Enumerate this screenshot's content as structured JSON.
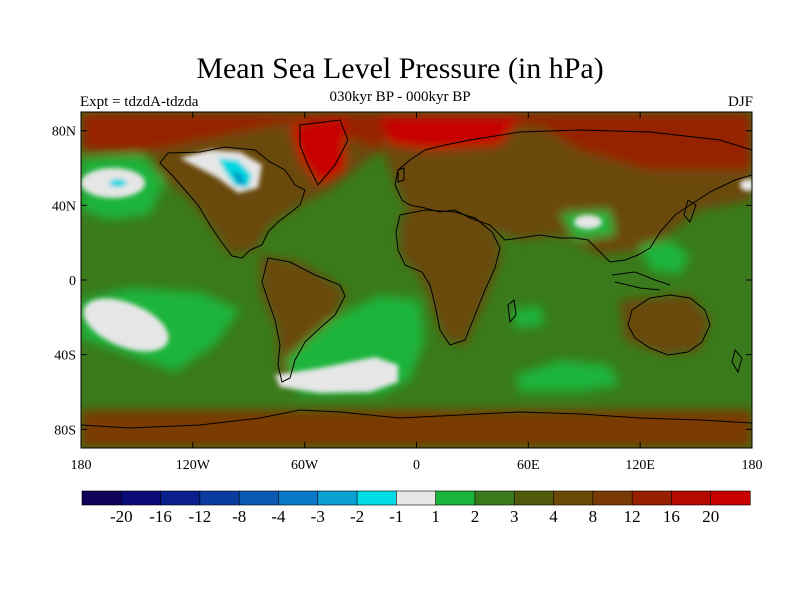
{
  "header": {
    "title": "Mean Sea Level Pressure (in hPa)",
    "subtitle": "030kyr BP - 000kyr BP",
    "left_label": "Expt = tdzdA-tdzda",
    "right_label": "DJF"
  },
  "map": {
    "lat_ticks": [
      "80N",
      "40N",
      "0",
      "40S",
      "80S"
    ],
    "lon_ticks": [
      "180",
      "120W",
      "60W",
      "0",
      "60E",
      "120E",
      "180"
    ],
    "lat_values": [
      80,
      40,
      0,
      -40,
      -80
    ],
    "lon_values": [
      -180,
      -120,
      -60,
      0,
      60,
      120,
      180
    ],
    "lat_range": [
      -90,
      90
    ],
    "lon_range": [
      -180,
      180
    ],
    "colors": {
      "ocean_base": "#3a7a1c",
      "land_base": "#6b4a08",
      "high_bright": "#c80000",
      "high_dark": "#962000",
      "high_mid": "#7a3a06",
      "green_light": "#1ab43a",
      "white": "#e6e6e6",
      "cyan": "#00d8e0",
      "cyan_dark": "#0096c8"
    }
  },
  "colorbar": {
    "labels": [
      "-20",
      "-16",
      "-12",
      "-8",
      "-4",
      "-3",
      "-2",
      "-1",
      "1",
      "2",
      "3",
      "4",
      "8",
      "12",
      "16",
      "20"
    ],
    "colors": [
      "#10005a",
      "#0a0a78",
      "#0a1e8c",
      "#0a3ca0",
      "#0a5ab4",
      "#0a78c8",
      "#0aa0d2",
      "#00dce6",
      "#e6e6e6",
      "#1ab43a",
      "#3a7a1c",
      "#505a0a",
      "#6b4a08",
      "#7a3a06",
      "#962000",
      "#b40a00",
      "#c80000"
    ]
  }
}
